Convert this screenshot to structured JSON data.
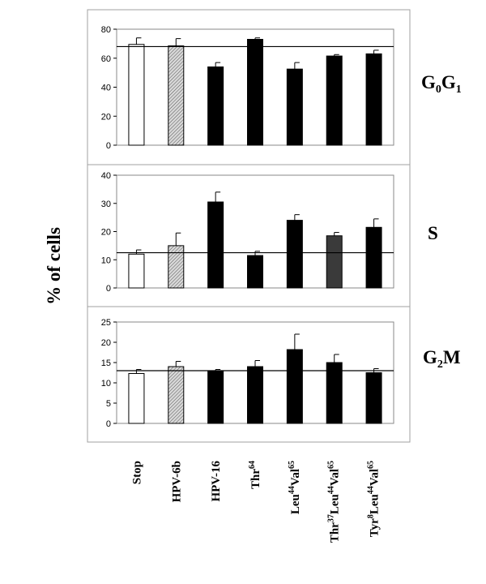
{
  "y_axis_label": "% of cells",
  "chart_data": [
    {
      "type": "bar",
      "panel_label": "G0G1",
      "panel_label_parts": [
        {
          "t": "G"
        },
        {
          "t": "0",
          "sub": true
        },
        {
          "t": "G"
        },
        {
          "t": "1",
          "sub": true
        }
      ],
      "categories": [
        "Stop",
        "HPV-6b",
        "HPV-16",
        "Thr64",
        "Leu44Val65",
        "Thr37Leu44Val65",
        "Tyr8Leu44Val65"
      ],
      "values": [
        69.5,
        68.5,
        54,
        73,
        52.5,
        61.5,
        63
      ],
      "errors": [
        4.5,
        5,
        3,
        1,
        4.5,
        1,
        2.5
      ],
      "fills": [
        "white",
        "hatched",
        "black",
        "black",
        "black",
        "black",
        "black"
      ],
      "reference_line": 68,
      "ylim": [
        0,
        80
      ],
      "yticks": [
        "0",
        "20",
        "40",
        "60",
        "80"
      ]
    },
    {
      "type": "bar",
      "panel_label": "S",
      "panel_label_parts": [
        {
          "t": "S"
        }
      ],
      "categories": [
        "Stop",
        "HPV-6b",
        "HPV-16",
        "Thr64",
        "Leu44Val65",
        "Thr37Leu44Val65",
        "Tyr8Leu44Val65"
      ],
      "values": [
        12,
        15,
        30.5,
        11.5,
        24,
        18.5,
        21.5
      ],
      "errors": [
        1.5,
        4.5,
        3.5,
        1.5,
        2,
        1.2,
        3
      ],
      "fills": [
        "white",
        "hatched",
        "black",
        "black",
        "black",
        "dark",
        "black"
      ],
      "reference_line": 12.5,
      "ylim": [
        0,
        40
      ],
      "yticks": [
        "0",
        "10",
        "20",
        "30",
        "40"
      ]
    },
    {
      "type": "bar",
      "panel_label": "G2M",
      "panel_label_parts": [
        {
          "t": "G"
        },
        {
          "t": "2",
          "sub": true
        },
        {
          "t": "M"
        }
      ],
      "categories": [
        "Stop",
        "HPV-6b",
        "HPV-16",
        "Thr64",
        "Leu44Val65",
        "Thr37Leu44Val65",
        "Tyr8Leu44Val65"
      ],
      "values": [
        12.3,
        14,
        12.8,
        14,
        18.2,
        15,
        12.5
      ],
      "errors": [
        1,
        1.3,
        0.5,
        1.5,
        3.8,
        2,
        1
      ],
      "fills": [
        "white",
        "hatched",
        "black",
        "black",
        "black",
        "black",
        "black"
      ],
      "reference_line": 13,
      "ylim": [
        0,
        25
      ],
      "yticks": [
        "0",
        "5",
        "10",
        "15",
        "20",
        "25"
      ]
    }
  ],
  "category_labels": [
    [
      {
        "t": "Stop"
      }
    ],
    [
      {
        "t": "HPV-6b"
      }
    ],
    [
      {
        "t": "HPV-16"
      }
    ],
    [
      {
        "t": "Thr"
      },
      {
        "t": "64",
        "sup": true
      }
    ],
    [
      {
        "t": "Leu"
      },
      {
        "t": "44",
        "sup": true
      },
      {
        "t": "Val"
      },
      {
        "t": "65",
        "sup": true
      }
    ],
    [
      {
        "t": "Thr"
      },
      {
        "t": "37",
        "sup": true
      },
      {
        "t": "Leu"
      },
      {
        "t": "44",
        "sup": true
      },
      {
        "t": "Val"
      },
      {
        "t": "65",
        "sup": true
      }
    ],
    [
      {
        "t": "Tyr"
      },
      {
        "t": "8",
        "sup": true
      },
      {
        "t": "Leu"
      },
      {
        "t": "44",
        "sup": true
      },
      {
        "t": "Val"
      },
      {
        "t": "65",
        "sup": true
      }
    ]
  ]
}
